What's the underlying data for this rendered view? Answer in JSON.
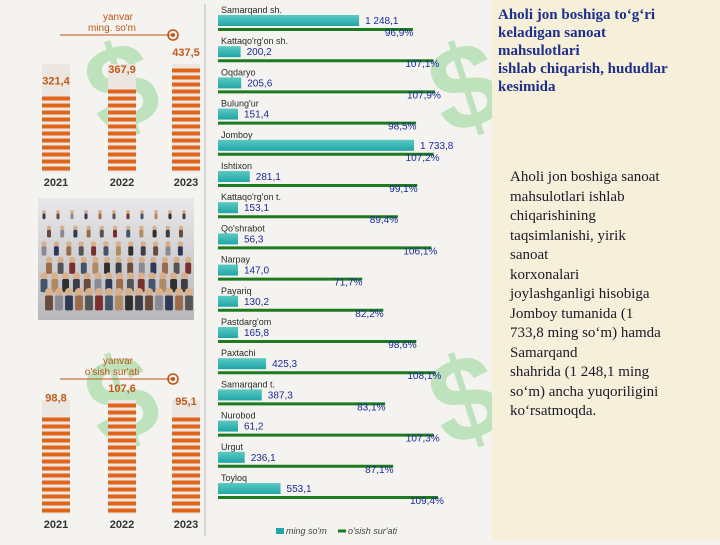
{
  "colors": {
    "bar_teal": "#1fa6a6",
    "bar_teal_light": "#5cc9c4",
    "growth_line": "#1e7a1e",
    "column_orange": "#e0641c",
    "heading_blue": "#1f2f8a",
    "value_blue": "#1a2a9a",
    "watermark_green": "#7fd07f"
  },
  "icons": [
    "people-crowd-photo",
    "dollar-sign-watermark",
    "circle-marker-icon"
  ],
  "heading": {
    "lines": [
      "Aholi jon boshiga to‘g‘ri",
      "keladigan sanoat",
      "mahsulotlari",
      "ishlab chiqarish, hududlar",
      "kesimida"
    ]
  },
  "body": {
    "lines": [
      "Aholi jon boshiga sanoat",
      "mahsulotlari ishlab",
      "chiqarishining",
      "taqsimlanishi, yirik",
      "sanoat",
      "korxonalari",
      "joylashganligi hisobiga",
      "Jomboy tumanida (1",
      "733,8 ming so‘m) hamda",
      "Samarqand",
      "shahrida (1 248,1 ming",
      "so‘m) ancha yuqoriligini",
      "ko‘rsatmoqda."
    ]
  },
  "chart_data": [
    {
      "type": "bar",
      "title": "yanvar ming. so'm",
      "title_lines": [
        "yanvar",
        "ming. so'm"
      ],
      "categories": [
        "2021",
        "2022",
        "2023"
      ],
      "values": [
        321.4,
        367.9,
        437.5
      ],
      "value_labels": [
        "321,4",
        "367,9",
        "437,5"
      ]
    },
    {
      "type": "bar",
      "title": "yanvar o'sish sur'ati",
      "title_lines": [
        "yanvar",
        "o'sish sur'ati"
      ],
      "categories": [
        "2021",
        "2022",
        "2023"
      ],
      "values": [
        98.8,
        107.6,
        95.1
      ],
      "value_labels": [
        "98,8",
        "107,6",
        "95,1"
      ]
    },
    {
      "type": "bar",
      "orientation": "horizontal",
      "categories": [
        "Samarqand sh.",
        "Kattaqo'rg'on sh.",
        "Oqdaryo",
        "Bulung'ur",
        "Jomboy",
        "Ishtixon",
        "Kattaqo'rg'on t.",
        "Qo'shrabot",
        "Narpay",
        "Payariq",
        "Pastdarg'om",
        "Paxtachi",
        "Samarqand t.",
        "Nurobod",
        "Urgut",
        "Toyloq"
      ],
      "series": [
        {
          "name": "ming so'm",
          "values": [
            1248.1,
            200.2,
            205.6,
            151.4,
            1733.8,
            281.1,
            153.1,
            56.3,
            147.0,
            130.2,
            165.8,
            425.3,
            387.3,
            61.2,
            236.1,
            553.1
          ],
          "labels": [
            "1 248,1",
            "200,2",
            "205,6",
            "151,4",
            "1 733,8",
            "281,1",
            "153,1",
            "56,3",
            "147,0",
            "130,2",
            "165,8",
            "425,3",
            "387,3",
            "61,2",
            "236,1",
            "553,1"
          ]
        },
        {
          "name": "o'sish sur'ati",
          "values": [
            96.9,
            107.1,
            107.9,
            98.5,
            107.2,
            99.1,
            89.4,
            106.1,
            71.7,
            82.2,
            98.6,
            108.1,
            83.1,
            107.3,
            87.1,
            109.4
          ],
          "labels": [
            "96,9%",
            "107,1%",
            "107,9%",
            "98,5%",
            "107,2%",
            "99,1%",
            "89,4%",
            "106,1%",
            "71,7%",
            "82,2%",
            "98,6%",
            "108,1%",
            "83,1%",
            "107,3%",
            "87,1%",
            "109,4%"
          ]
        }
      ],
      "legend": "bottom"
    }
  ]
}
